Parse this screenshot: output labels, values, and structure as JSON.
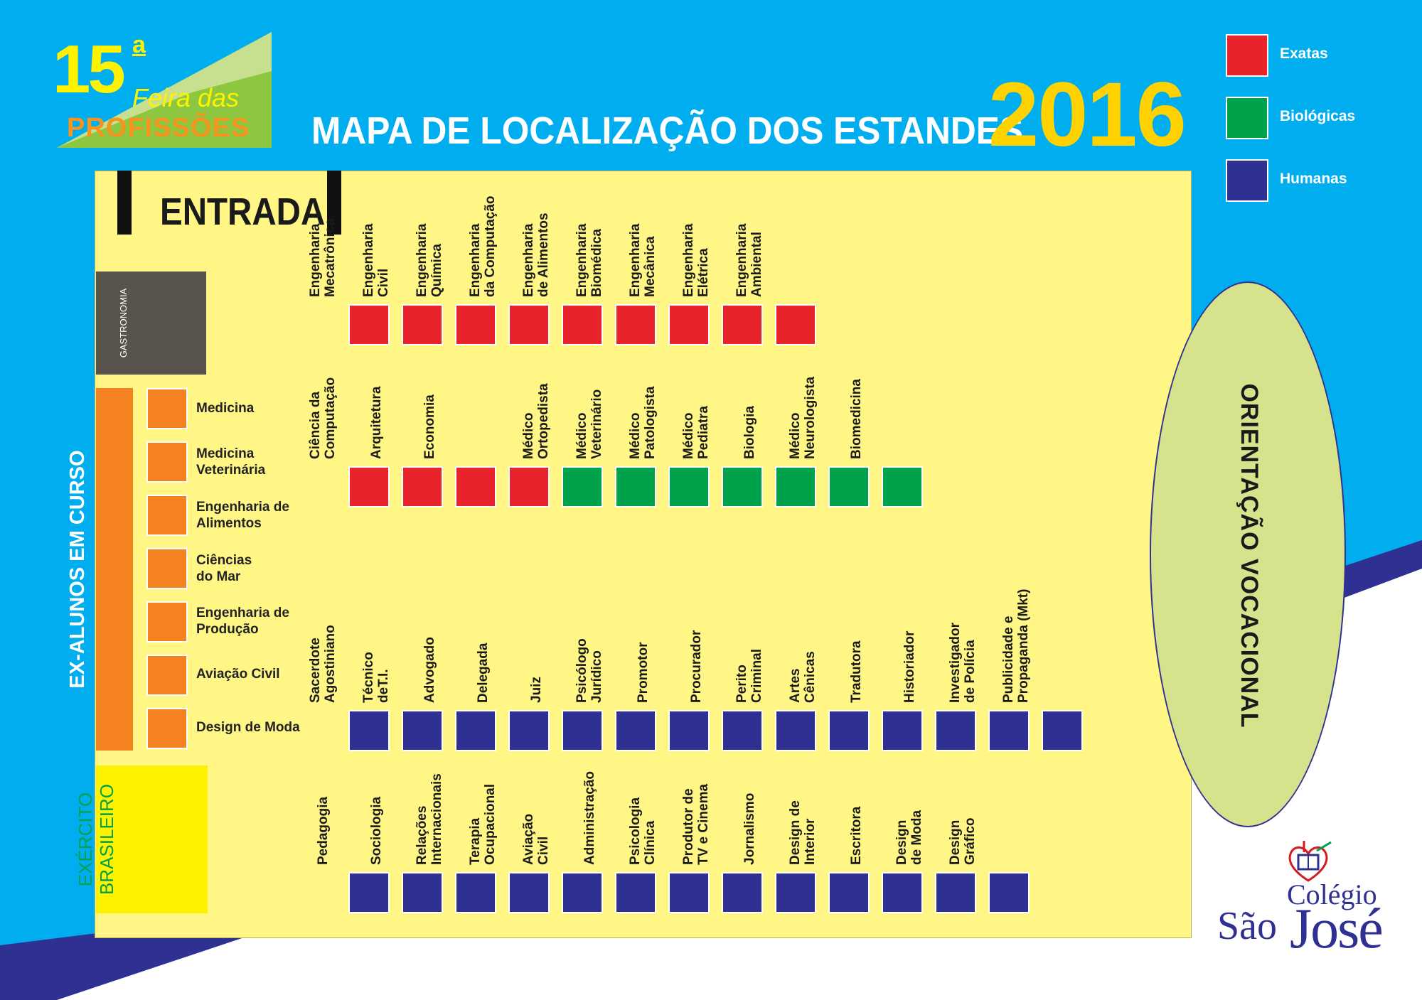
{
  "header": {
    "logo_number": "15",
    "logo_superscript": "a",
    "logo_line1": "Feira das",
    "logo_line2": "PROFISSÕES",
    "title": "MAPA DE LOCALIZAÇÃO DOS ESTANDES",
    "year": "2016"
  },
  "legend": [
    {
      "label": "Exatas",
      "color": "#e8232a"
    },
    {
      "label": "Biológicas",
      "color": "#00a14b"
    },
    {
      "label": "Humanas",
      "color": "#2e3192"
    }
  ],
  "entrance_label": "ENTRADA",
  "gastronomia_label": "GASTRONOMIA",
  "ex_alunos": {
    "title": "EX-ALUNOS EM CURSO",
    "items": [
      "Medicina",
      "Medicina\nVeterinária",
      "Engenharia de\nAlimentos",
      "Ciências\ndo Mar",
      "Engenharia de\nProdução",
      "Aviação Civil",
      "Design de Moda"
    ]
  },
  "exercito_label_line1": "EXÉRCITO",
  "exercito_label_line2": "BRASILEIRO",
  "orientacao_label": "ORIENTAÇÃO VOCACIONAL",
  "rows": [
    {
      "stands": [
        {
          "lines": [
            "Engenharia",
            "Mecatrônica"
          ],
          "area": "exatas"
        },
        {
          "lines": [
            "Engenharia",
            "Civil"
          ],
          "area": "exatas"
        },
        {
          "lines": [
            "Engenharia",
            "Química"
          ],
          "area": "exatas"
        },
        {
          "lines": [
            "Engenharia",
            "da Computação"
          ],
          "area": "exatas"
        },
        {
          "lines": [
            "Engenharia",
            "de Alimentos"
          ],
          "area": "exatas"
        },
        {
          "lines": [
            "Engenharia",
            "Biomédica"
          ],
          "area": "exatas"
        },
        {
          "lines": [
            "Engenharia",
            "Mecânica"
          ],
          "area": "exatas"
        },
        {
          "lines": [
            "Engenharia",
            "Elétrica"
          ],
          "area": "exatas"
        },
        {
          "lines": [
            "Engenharia",
            "Ambiental"
          ],
          "area": "exatas"
        }
      ]
    },
    {
      "stands": [
        {
          "lines": [
            "Ciência da",
            "Computação"
          ],
          "area": "exatas"
        },
        {
          "lines": [
            "Arquitetura"
          ],
          "area": "exatas"
        },
        {
          "lines": [
            "Economia"
          ],
          "area": "exatas"
        },
        {
          "lines": [],
          "area": "exatas"
        },
        {
          "lines": [
            "Médico",
            "Ortopedista"
          ],
          "area": "biologicas"
        },
        {
          "lines": [
            "Médico",
            "Veterinário"
          ],
          "area": "biologicas"
        },
        {
          "lines": [
            "Médico",
            "Patologista"
          ],
          "area": "biologicas"
        },
        {
          "lines": [
            "Médico",
            "Pediatra"
          ],
          "area": "biologicas"
        },
        {
          "lines": [
            "Biologia"
          ],
          "area": "biologicas"
        },
        {
          "lines": [
            "Médico",
            "Neurologista"
          ],
          "area": "biologicas"
        },
        {
          "lines": [
            "Biomedicina"
          ],
          "area": "biologicas"
        }
      ]
    },
    {
      "stands": [
        {
          "lines": [
            "Sacerdote",
            "Agostiniano"
          ],
          "area": "humanas"
        },
        {
          "lines": [
            "Técnico",
            "deT.I."
          ],
          "area": "humanas"
        },
        {
          "lines": [
            "Advogado"
          ],
          "area": "humanas"
        },
        {
          "lines": [
            "Delegada"
          ],
          "area": "humanas"
        },
        {
          "lines": [
            "Juiz"
          ],
          "area": "humanas"
        },
        {
          "lines": [
            "Psicólogo",
            "Jurídico"
          ],
          "area": "humanas"
        },
        {
          "lines": [
            "Promotor"
          ],
          "area": "humanas"
        },
        {
          "lines": [
            "Procurador"
          ],
          "area": "humanas"
        },
        {
          "lines": [
            "Perito",
            "Criminal"
          ],
          "area": "humanas"
        },
        {
          "lines": [
            "Artes",
            "Cênicas"
          ],
          "area": "humanas"
        },
        {
          "lines": [
            "Tradutora"
          ],
          "area": "humanas"
        },
        {
          "lines": [
            "Historiador"
          ],
          "area": "humanas"
        },
        {
          "lines": [
            "Investigador",
            "de Polícia"
          ],
          "area": "humanas"
        },
        {
          "lines": [
            "Publicidade e",
            "Propaganda (Mkt)"
          ],
          "area": "humanas"
        }
      ]
    },
    {
      "stands": [
        {
          "lines": [
            "Pedagogia"
          ],
          "area": "humanas"
        },
        {
          "lines": [
            "Sociologia"
          ],
          "area": "humanas"
        },
        {
          "lines": [
            "Relações",
            "Internacionais"
          ],
          "area": "humanas"
        },
        {
          "lines": [
            "Terapia",
            "Ocupacional"
          ],
          "area": "humanas"
        },
        {
          "lines": [
            "Aviação",
            "Civil"
          ],
          "area": "humanas"
        },
        {
          "lines": [
            "Administração"
          ],
          "area": "humanas"
        },
        {
          "lines": [
            "Psicologia",
            "Clínica"
          ],
          "area": "humanas"
        },
        {
          "lines": [
            "Produtor de",
            "TV e Cinema"
          ],
          "area": "humanas"
        },
        {
          "lines": [
            "Jornalismo"
          ],
          "area": "humanas"
        },
        {
          "lines": [
            "Design de",
            "Interior"
          ],
          "area": "humanas"
        },
        {
          "lines": [
            "Escritora"
          ],
          "area": "humanas"
        },
        {
          "lines": [
            "Design",
            "de Moda"
          ],
          "area": "humanas"
        },
        {
          "lines": [
            "Design",
            "Gráfico"
          ],
          "area": "humanas"
        }
      ]
    }
  ],
  "school": {
    "line1": "Colégio",
    "line2a": "São",
    "line2b": "José",
    "crest_icon": "school-crest-icon"
  }
}
